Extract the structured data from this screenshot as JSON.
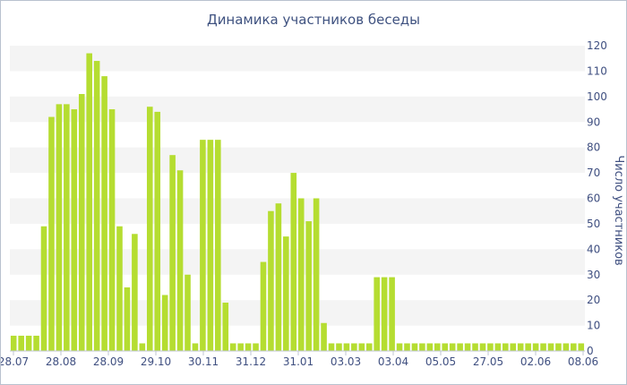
{
  "chart_data": {
    "type": "bar",
    "title": "Динамика участников беседы",
    "xlabel": "",
    "ylabel": "Число участников",
    "ylim": [
      0,
      120
    ],
    "yticks": [
      0,
      10,
      20,
      30,
      40,
      50,
      60,
      70,
      80,
      90,
      100,
      110,
      120
    ],
    "x_tick_labels": [
      "28.07",
      "28.08",
      "28.09",
      "29.10",
      "30.11",
      "31.12",
      "31.01",
      "03.03",
      "03.04",
      "05.05",
      "27.05",
      "02.06",
      "08.06"
    ],
    "grid": "horizontal bands",
    "colors": {
      "bar": "#b5dd31",
      "band": "#f4f4f4",
      "text": "#3f4f80",
      "border": "#b9c1cf"
    },
    "values": [
      6,
      6,
      6,
      6,
      49,
      92,
      97,
      97,
      95,
      101,
      117,
      114,
      108,
      95,
      49,
      25,
      46,
      3,
      96,
      94,
      22,
      77,
      71,
      30,
      3,
      83,
      83,
      83,
      19,
      3,
      3,
      3,
      3,
      35,
      55,
      58,
      45,
      70,
      60,
      51,
      60,
      11,
      3,
      3,
      3,
      3,
      3,
      3,
      29,
      29,
      29,
      3,
      3,
      3,
      3,
      3,
      3,
      3,
      3,
      3,
      3,
      3,
      3,
      3,
      3,
      3,
      3,
      3,
      3,
      3,
      3,
      3,
      3,
      3,
      3,
      3
    ]
  }
}
